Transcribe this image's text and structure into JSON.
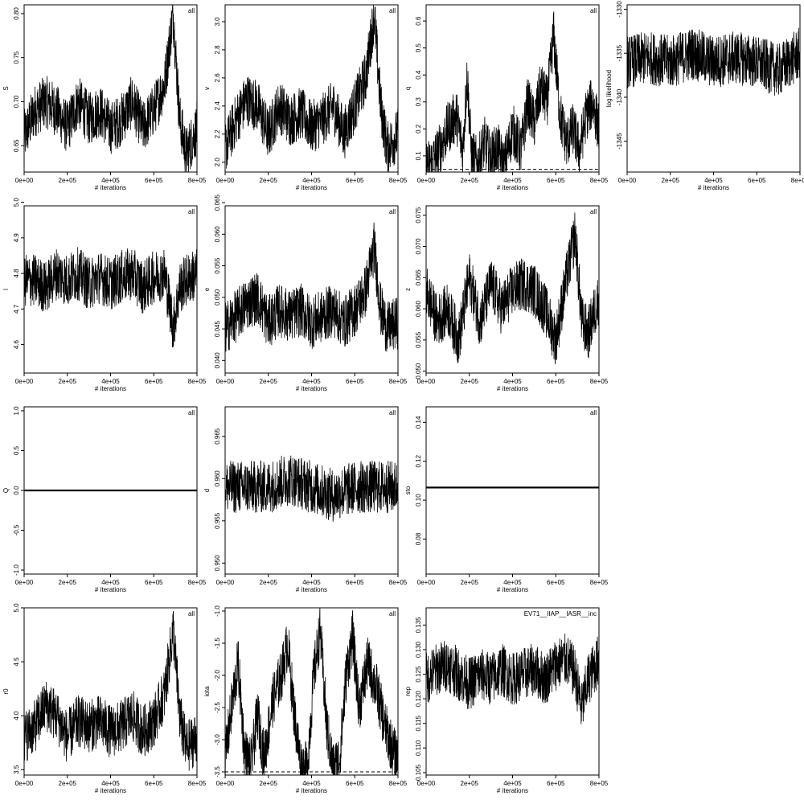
{
  "x_ticks": [
    "0e+00",
    "2e+05",
    "4e+05",
    "6e+05",
    "8e+05"
  ],
  "x_tick_values": [
    0,
    200000,
    400000,
    600000,
    800000
  ],
  "xlabel": "# iterations",
  "chart_data": [
    {
      "id": "S",
      "type": "line",
      "row": 0,
      "col": 0,
      "ylabel": "S",
      "tag": "all",
      "xlim": [
        0,
        800000
      ],
      "ylim": [
        0.62,
        0.81
      ],
      "yticks": [
        0.65,
        0.7,
        0.75,
        0.8
      ],
      "ytick_labels": [
        "0.65",
        "0.70",
        "0.75",
        "0.80"
      ],
      "ref": null,
      "series": [
        {
          "x": [
            0,
            50000,
            100000,
            150000,
            200000,
            250000,
            300000,
            350000,
            400000,
            450000,
            500000,
            550000,
            600000,
            650000,
            690000,
            720000,
            750000,
            800000
          ],
          "y": [
            0.66,
            0.69,
            0.7,
            0.69,
            0.67,
            0.7,
            0.68,
            0.69,
            0.67,
            0.68,
            0.7,
            0.67,
            0.69,
            0.72,
            0.8,
            0.68,
            0.64,
            0.67
          ]
        }
      ]
    },
    {
      "id": "v",
      "type": "line",
      "row": 0,
      "col": 1,
      "ylabel": "v",
      "tag": "all",
      "xlim": [
        0,
        800000
      ],
      "ylim": [
        1.93,
        3.12
      ],
      "yticks": [
        2.0,
        2.2,
        2.4,
        2.6,
        2.8,
        3.0
      ],
      "ytick_labels": [
        "2.0",
        "2.2",
        "2.4",
        "2.6",
        "2.8",
        "3.0"
      ],
      "ref": null,
      "series": [
        {
          "x": [
            0,
            50000,
            100000,
            150000,
            200000,
            250000,
            300000,
            350000,
            400000,
            450000,
            500000,
            550000,
            600000,
            650000,
            690000,
            720000,
            750000,
            800000
          ],
          "y": [
            2.1,
            2.3,
            2.45,
            2.4,
            2.2,
            2.4,
            2.3,
            2.35,
            2.25,
            2.3,
            2.4,
            2.2,
            2.4,
            2.6,
            3.05,
            2.4,
            2.1,
            2.2
          ]
        }
      ]
    },
    {
      "id": "q",
      "type": "line",
      "row": 0,
      "col": 2,
      "ylabel": "q",
      "tag": "all",
      "xlim": [
        0,
        800000
      ],
      "ylim": [
        0.04,
        0.66
      ],
      "yticks": [
        0.1,
        0.2,
        0.3,
        0.4,
        0.5,
        0.6
      ],
      "ytick_labels": [
        "0.1",
        "0.2",
        "0.3",
        "0.4",
        "0.5",
        "0.6"
      ],
      "ref": 0.05,
      "series": [
        {
          "x": [
            0,
            30000,
            60000,
            100000,
            140000,
            170000,
            190000,
            210000,
            240000,
            270000,
            300000,
            330000,
            360000,
            400000,
            440000,
            470000,
            500000,
            530000,
            560000,
            590000,
            620000,
            650000,
            680000,
            710000,
            740000,
            770000,
            800000
          ],
          "y": [
            0.06,
            0.08,
            0.12,
            0.2,
            0.25,
            0.12,
            0.4,
            0.1,
            0.07,
            0.15,
            0.09,
            0.13,
            0.06,
            0.2,
            0.12,
            0.3,
            0.22,
            0.35,
            0.3,
            0.55,
            0.25,
            0.15,
            0.2,
            0.12,
            0.25,
            0.3,
            0.2
          ]
        }
      ]
    },
    {
      "id": "loglik",
      "type": "line",
      "row": 0,
      "col": 3,
      "ylabel": "log likelihood",
      "tag": "",
      "xlim": [
        0,
        800000
      ],
      "ylim": [
        -1348.5,
        -1329.5
      ],
      "yticks": [
        -1345,
        -1340,
        -1335,
        -1330
      ],
      "ytick_labels": [
        "-1345",
        "-1340",
        "-1335",
        "-1330"
      ],
      "ref": null,
      "series": [
        {
          "x": [
            0,
            100000,
            200000,
            300000,
            400000,
            500000,
            600000,
            700000,
            800000
          ],
          "y": [
            -1336,
            -1335.5,
            -1336,
            -1335,
            -1336,
            -1335.5,
            -1336,
            -1337,
            -1335
          ]
        }
      ]
    },
    {
      "id": "l",
      "type": "line",
      "row": 1,
      "col": 0,
      "ylabel": "l",
      "tag": "all",
      "xlim": [
        0,
        800000
      ],
      "ylim": [
        4.52,
        4.99
      ],
      "yticks": [
        4.6,
        4.7,
        4.8,
        4.9,
        5.0
      ],
      "ytick_labels": [
        "4.6",
        "4.7",
        "4.8",
        "4.9",
        "5.0"
      ],
      "ref": null,
      "series": [
        {
          "x": [
            0,
            50000,
            100000,
            150000,
            200000,
            250000,
            300000,
            350000,
            400000,
            450000,
            500000,
            550000,
            600000,
            650000,
            690000,
            720000,
            750000,
            800000
          ],
          "y": [
            4.78,
            4.78,
            4.76,
            4.8,
            4.78,
            4.8,
            4.77,
            4.79,
            4.77,
            4.79,
            4.8,
            4.76,
            4.79,
            4.8,
            4.65,
            4.76,
            4.78,
            4.8
          ]
        }
      ]
    },
    {
      "id": "e",
      "type": "line",
      "row": 1,
      "col": 1,
      "ylabel": "e",
      "tag": "all",
      "xlim": [
        0,
        800000
      ],
      "ylim": [
        0.038,
        0.0645
      ],
      "yticks": [
        0.04,
        0.045,
        0.05,
        0.055,
        0.06,
        0.065
      ],
      "ytick_labels": [
        "0.040",
        "0.045",
        "0.050",
        "0.055",
        "0.060",
        "0.065"
      ],
      "ref": null,
      "series": [
        {
          "x": [
            0,
            50000,
            100000,
            150000,
            200000,
            250000,
            300000,
            350000,
            400000,
            450000,
            500000,
            550000,
            600000,
            650000,
            690000,
            720000,
            750000,
            800000
          ],
          "y": [
            0.045,
            0.047,
            0.049,
            0.05,
            0.046,
            0.048,
            0.047,
            0.048,
            0.046,
            0.047,
            0.048,
            0.046,
            0.048,
            0.051,
            0.058,
            0.048,
            0.045,
            0.046
          ]
        }
      ]
    },
    {
      "id": "z",
      "type": "line",
      "row": 1,
      "col": 2,
      "ylabel": "z",
      "tag": "all",
      "xlim": [
        0,
        800000
      ],
      "ylim": [
        0.0497,
        0.0765
      ],
      "yticks": [
        0.05,
        0.055,
        0.06,
        0.065,
        0.07,
        0.075
      ],
      "ytick_labels": [
        "0.050",
        "0.055",
        "0.060",
        "0.065",
        "0.070",
        "0.075"
      ],
      "ref": null,
      "series": [
        {
          "x": [
            0,
            50000,
            100000,
            150000,
            200000,
            250000,
            300000,
            350000,
            400000,
            450000,
            500000,
            550000,
            600000,
            650000,
            690000,
            720000,
            750000,
            800000
          ],
          "y": [
            0.063,
            0.058,
            0.06,
            0.055,
            0.065,
            0.058,
            0.064,
            0.06,
            0.063,
            0.064,
            0.063,
            0.06,
            0.055,
            0.065,
            0.072,
            0.058,
            0.056,
            0.062
          ]
        }
      ]
    },
    {
      "id": "Q",
      "type": "line",
      "row": 2,
      "col": 0,
      "ylabel": "Q",
      "tag": "all",
      "xlim": [
        0,
        800000
      ],
      "ylim": [
        -1.05,
        1.05
      ],
      "yticks": [
        -1.0,
        -0.5,
        0.0,
        0.5,
        1.0
      ],
      "ytick_labels": [
        "-1.0",
        "-0.5",
        "0.0",
        "0.5",
        "1.0"
      ],
      "ref": null,
      "series": [
        {
          "x": [
            0,
            800000
          ],
          "y": [
            0,
            0
          ]
        }
      ]
    },
    {
      "id": "d",
      "type": "line",
      "row": 2,
      "col": 1,
      "ylabel": "d",
      "tag": "all",
      "xlim": [
        0,
        800000
      ],
      "ylim": [
        0.9487,
        0.9685
      ],
      "yticks": [
        0.95,
        0.955,
        0.96,
        0.965
      ],
      "ytick_labels": [
        "0.950",
        "0.955",
        "0.960",
        "0.965"
      ],
      "ref": null,
      "series": [
        {
          "x": [
            0,
            100000,
            200000,
            300000,
            400000,
            500000,
            600000,
            700000,
            800000
          ],
          "y": [
            0.959,
            0.959,
            0.959,
            0.96,
            0.959,
            0.958,
            0.959,
            0.959,
            0.959
          ]
        }
      ]
    },
    {
      "id": "sto",
      "type": "line",
      "row": 2,
      "col": 2,
      "ylabel": "sto",
      "tag": "all",
      "xlim": [
        0,
        800000
      ],
      "ylim": [
        0.062,
        0.148
      ],
      "yticks": [
        0.08,
        0.1,
        0.12,
        0.14
      ],
      "ytick_labels": [
        "0.08",
        "0.10",
        "0.12",
        "0.14"
      ],
      "ref": null,
      "series": [
        {
          "x": [
            0,
            800000
          ],
          "y": [
            0.1065,
            0.1065
          ]
        }
      ]
    },
    {
      "id": "r0",
      "type": "line",
      "row": 3,
      "col": 0,
      "ylabel": "r0",
      "tag": "all",
      "xlim": [
        0,
        800000
      ],
      "ylim": [
        3.45,
        5.0
      ],
      "yticks": [
        3.5,
        4.0,
        4.5,
        5.0
      ],
      "ytick_labels": [
        "3.5",
        "4.0",
        "4.5",
        "5.0"
      ],
      "ref": null,
      "series": [
        {
          "x": [
            0,
            50000,
            100000,
            150000,
            200000,
            250000,
            300000,
            350000,
            400000,
            450000,
            500000,
            550000,
            600000,
            650000,
            690000,
            720000,
            750000,
            800000
          ],
          "y": [
            3.8,
            3.9,
            4.1,
            4.0,
            3.8,
            3.95,
            3.9,
            3.95,
            3.85,
            3.9,
            4.0,
            3.85,
            3.95,
            4.2,
            4.8,
            4.0,
            3.7,
            3.8
          ]
        }
      ]
    },
    {
      "id": "iota",
      "type": "line",
      "row": 3,
      "col": 1,
      "ylabel": "iota",
      "tag": "all",
      "xlim": [
        0,
        800000
      ],
      "ylim": [
        -3.55,
        -0.95
      ],
      "yticks": [
        -3.5,
        -3.0,
        -2.5,
        -2.0,
        -1.5,
        -1.0
      ],
      "ytick_labels": [
        "-3.5",
        "-3.0",
        "-2.5",
        "-2.0",
        "-1.5",
        "-1.0"
      ],
      "ref": -3.5,
      "series": [
        {
          "x": [
            0,
            30000,
            60000,
            90000,
            120000,
            150000,
            180000,
            220000,
            260000,
            290000,
            320000,
            350000,
            380000,
            410000,
            440000,
            470000,
            500000,
            530000,
            560000,
            590000,
            620000,
            660000,
            700000,
            740000,
            780000,
            800000
          ],
          "y": [
            -3.3,
            -2.5,
            -1.8,
            -3.2,
            -3.4,
            -2.6,
            -3.3,
            -2.4,
            -2.0,
            -1.5,
            -2.6,
            -3.4,
            -3.45,
            -2.0,
            -1.3,
            -2.8,
            -3.45,
            -3.3,
            -2.0,
            -1.4,
            -2.5,
            -1.8,
            -2.2,
            -2.8,
            -3.2,
            -3.3
          ]
        }
      ]
    },
    {
      "id": "rep",
      "type": "line",
      "row": 3,
      "col": 2,
      "ylabel": "rep",
      "tag": "EV71__IIAP__IASR__inc",
      "xlim": [
        0,
        800000
      ],
      "ylim": [
        0.1045,
        0.1385
      ],
      "yticks": [
        0.105,
        0.11,
        0.115,
        0.12,
        0.125,
        0.13,
        0.135
      ],
      "ytick_labels": [
        "0.105",
        "0.110",
        "0.115",
        "0.120",
        "0.125",
        "0.130",
        "0.135"
      ],
      "ref": null,
      "series": [
        {
          "x": [
            0,
            50000,
            100000,
            150000,
            200000,
            250000,
            300000,
            350000,
            400000,
            450000,
            500000,
            550000,
            600000,
            650000,
            690000,
            720000,
            750000,
            800000
          ],
          "y": [
            0.124,
            0.126,
            0.127,
            0.125,
            0.123,
            0.125,
            0.124,
            0.126,
            0.124,
            0.125,
            0.126,
            0.124,
            0.127,
            0.128,
            0.125,
            0.118,
            0.124,
            0.128
          ]
        }
      ]
    }
  ]
}
